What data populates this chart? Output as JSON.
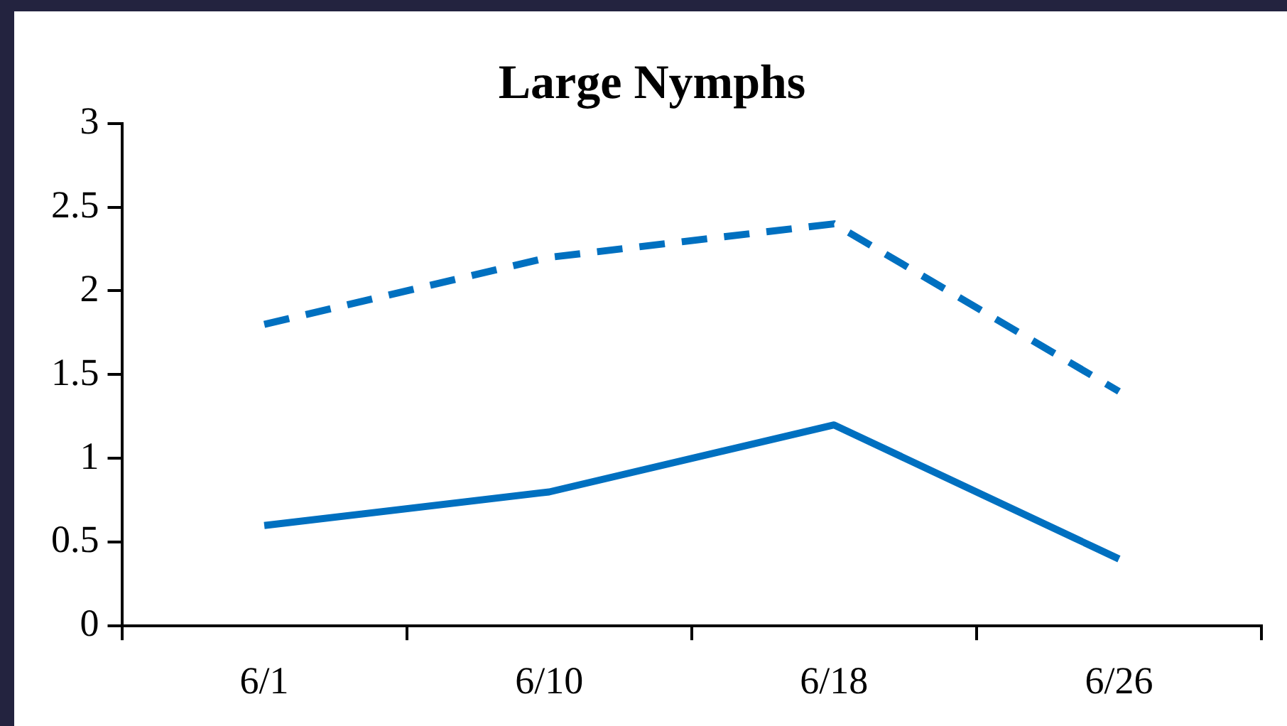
{
  "chart_data": {
    "type": "line",
    "title": "Large Nymphs",
    "categories": [
      "6/1",
      "6/10",
      "6/18",
      "6/26"
    ],
    "series": [
      {
        "color": "#0070c0",
        "line_style": "dashed",
        "values": [
          1.8,
          2.2,
          2.4,
          1.4
        ]
      },
      {
        "color": "#0070c0",
        "line_style": "solid",
        "values": [
          0.6,
          0.8,
          1.2,
          0.4
        ]
      }
    ],
    "ylim": [
      0,
      3
    ],
    "yticks": [
      0,
      0.5,
      1,
      1.5,
      2,
      2.5,
      3
    ],
    "grid": false,
    "legend": false,
    "marker": "none"
  }
}
